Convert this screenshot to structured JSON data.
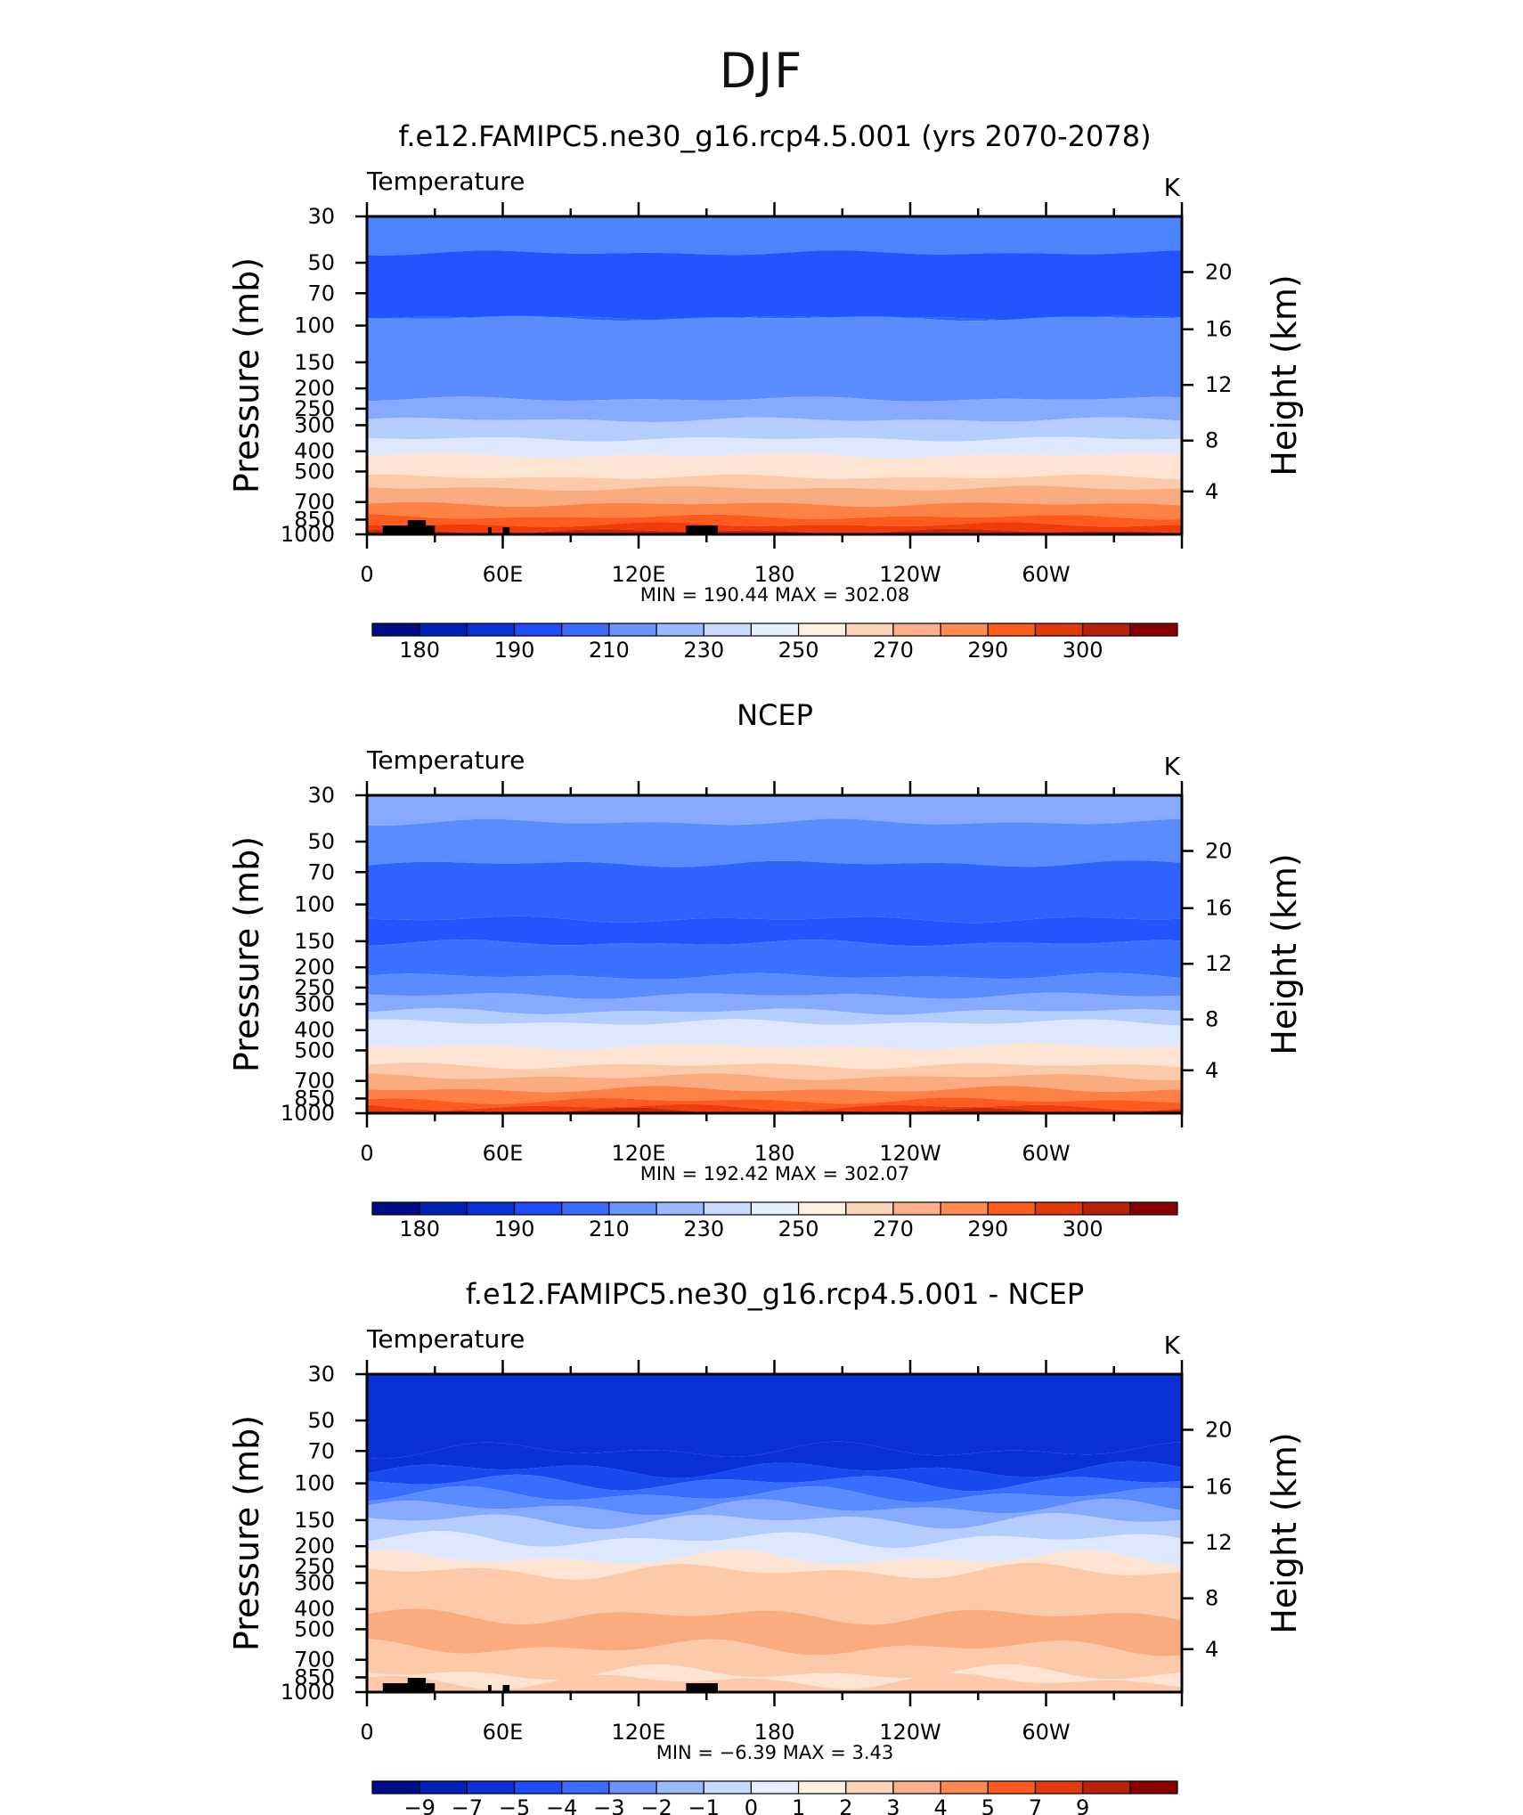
{
  "main_title": "DJF",
  "chart_data": [
    {
      "type": "heatmap",
      "title": "f.e12.FAMIPC5.ne30_g16.rcp4.5.001 (yrs 2070-2078)",
      "variable": "Temperature",
      "units": "K",
      "ylabel": "Pressure (mb)",
      "ylabel_right": "Height (km)",
      "xlabel": "",
      "x_tick_labels": [
        "0",
        "60E",
        "120E",
        "180",
        "120W",
        "60W"
      ],
      "y_tick_labels": [
        "30",
        "50",
        "70",
        "100",
        "150",
        "200",
        "250",
        "300",
        "400",
        "500",
        "700",
        "850",
        "1000"
      ],
      "y_right_tick_labels": [
        "20",
        "16",
        "12",
        "8",
        "4"
      ],
      "ylim": [
        1000,
        30
      ],
      "stats": "MIN = 190.44 MAX = 302.08",
      "colorbar_labels": [
        "180",
        "190",
        "210",
        "230",
        "250",
        "270",
        "290",
        "300"
      ],
      "layer_colors": [
        "#4a84ff",
        "#2255ff",
        "#2f62ff",
        "#5a8cff",
        "#86aaff",
        "#b5ccff",
        "#dde8ff",
        "#fde4d2",
        "#fcc9a9",
        "#fbab80",
        "#ff8245",
        "#ff5a20",
        "#f23a0a",
        "#c42806"
      ]
    },
    {
      "type": "heatmap",
      "title": "NCEP",
      "variable": "Temperature",
      "units": "K",
      "ylabel": "Pressure (mb)",
      "ylabel_right": "Height (km)",
      "xlabel": "",
      "x_tick_labels": [
        "0",
        "60E",
        "120E",
        "180",
        "120W",
        "60W"
      ],
      "y_tick_labels": [
        "30",
        "50",
        "70",
        "100",
        "150",
        "200",
        "250",
        "300",
        "400",
        "500",
        "700",
        "850",
        "1000"
      ],
      "y_right_tick_labels": [
        "20",
        "16",
        "12",
        "8",
        "4"
      ],
      "ylim": [
        1000,
        30
      ],
      "stats": "MIN = 192.42 MAX = 302.07",
      "colorbar_labels": [
        "180",
        "190",
        "210",
        "230",
        "250",
        "270",
        "290",
        "300"
      ],
      "layer_colors": [
        "#86aaff",
        "#5a8cff",
        "#2f62ff",
        "#2255ff",
        "#3a72ff",
        "#5a8cff",
        "#86aaff",
        "#b5ccff",
        "#dde8ff",
        "#fde4d2",
        "#fcc9a9",
        "#fbab80",
        "#ff8245",
        "#ff5a20",
        "#f23a0a",
        "#c42806"
      ]
    },
    {
      "type": "heatmap",
      "title": "f.e12.FAMIPC5.ne30_g16.rcp4.5.001 - NCEP",
      "variable": "Temperature",
      "units": "K",
      "ylabel": "Pressure (mb)",
      "ylabel_right": "Height (km)",
      "xlabel": "",
      "x_tick_labels": [
        "0",
        "60E",
        "120E",
        "180",
        "120W",
        "60W"
      ],
      "y_tick_labels": [
        "30",
        "50",
        "70",
        "100",
        "150",
        "200",
        "250",
        "300",
        "400",
        "500",
        "700",
        "850",
        "1000"
      ],
      "y_right_tick_labels": [
        "20",
        "16",
        "12",
        "8",
        "4"
      ],
      "ylim": [
        1000,
        30
      ],
      "stats": "MIN = −6.39 MAX = 3.43",
      "colorbar_labels": [
        "−9",
        "−7",
        "−5",
        "−4",
        "−3",
        "−2",
        "−1",
        "0",
        "1",
        "2",
        "3",
        "4",
        "5",
        "7",
        "9"
      ],
      "layer_colors": [
        "#0a30d8",
        "#0a30d8",
        "#1848ee",
        "#3a6cff",
        "#5a8cff",
        "#86aaff",
        "#b5ccff",
        "#dde8ff",
        "#fde4d2",
        "#fcc9a9",
        "#fbab80",
        "#fcc9a9",
        "#fde4d2",
        "#fcc9a9"
      ]
    }
  ],
  "colorbar_colors": [
    "#000d8a",
    "#0022b8",
    "#0a30d8",
    "#1e4cf6",
    "#3c6cff",
    "#6a95ff",
    "#9bb9ff",
    "#c8dbff",
    "#e6efff",
    "#fff0e0",
    "#fdd3b8",
    "#fbb08b",
    "#ff8a52",
    "#ff5a20",
    "#e23a0e",
    "#b8220a",
    "#8a0000"
  ]
}
